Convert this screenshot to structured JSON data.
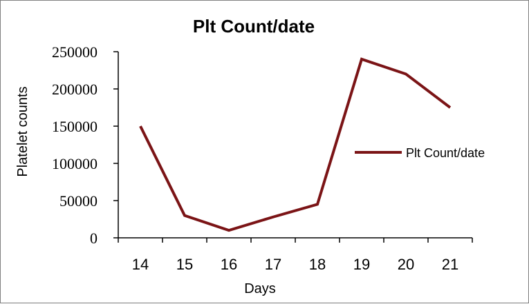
{
  "chart_data": {
    "type": "line",
    "title": "Plt Count/date",
    "xlabel": "Days",
    "ylabel": "Platelet counts",
    "categories": [
      "14",
      "15",
      "16",
      "17",
      "18",
      "19",
      "20",
      "21"
    ],
    "series": [
      {
        "name": "Plt Count/date",
        "values": [
          150000,
          30000,
          10000,
          28000,
          45000,
          240000,
          220000,
          175000
        ],
        "color": "#7b1416"
      }
    ],
    "ylim": [
      0,
      250000
    ],
    "yticks": [
      "0",
      "50000",
      "100000",
      "150000",
      "200000",
      "250000"
    ],
    "grid": false,
    "legend_position": "right"
  }
}
